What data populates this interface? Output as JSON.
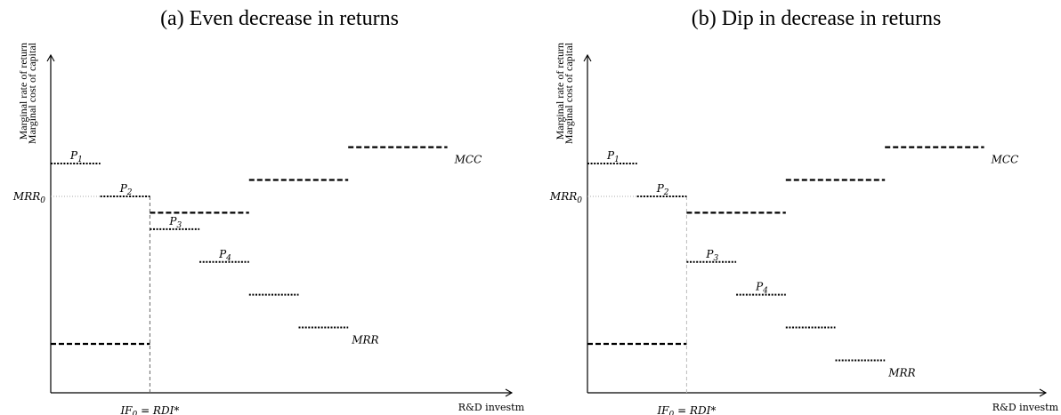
{
  "panels": [
    {
      "id": "a",
      "title": "(a) Even decrease in returns",
      "y_label_1": "Marginal rate of return",
      "y_label_2": "Marginal cost of capital",
      "x_label": "R&D investm",
      "mrr0_label": "MRR",
      "mrr0_sub": "0",
      "if_label": "IF",
      "if_sub": "0",
      "if_rest": " = RDI*",
      "mcc_label": "MCC",
      "mrr_label": "MRR",
      "projects": [
        {
          "name": "P",
          "sub": "1"
        },
        {
          "name": "P",
          "sub": "2"
        },
        {
          "name": "P",
          "sub": "3"
        },
        {
          "name": "P",
          "sub": "4"
        }
      ],
      "mrr_steps": [
        {
          "start": 0,
          "end": 1,
          "level": 6.9
        },
        {
          "start": 1,
          "end": 2,
          "level": 5.9
        },
        {
          "start": 2,
          "end": 3,
          "level": 4.9
        },
        {
          "start": 3,
          "end": 4,
          "level": 3.9
        },
        {
          "start": 4,
          "end": 5,
          "level": 2.9
        },
        {
          "start": 5,
          "end": 6,
          "level": 1.9
        }
      ],
      "mcc_steps": [
        {
          "start": 0,
          "end": 2,
          "level": 1.4
        },
        {
          "start": 2,
          "end": 4,
          "level": 5.4
        },
        {
          "start": 4,
          "end": 6,
          "level": 6.4
        },
        {
          "start": 6,
          "end": 8,
          "level": 7.4
        }
      ],
      "mrr0_level": 5.9,
      "if_x": 2
    },
    {
      "id": "b",
      "title": "(b) Dip in decrease in returns",
      "y_label_1": "Marginal rate of return",
      "y_label_2": "Marginal cost of capital",
      "x_label": "R&D investm",
      "mrr0_label": "MRR",
      "mrr0_sub": "0",
      "if_label": "IF",
      "if_sub": "0",
      "if_rest": " = RDI*",
      "mcc_label": "MCC",
      "mrr_label": "MRR",
      "projects": [
        {
          "name": "P",
          "sub": "1"
        },
        {
          "name": "P",
          "sub": "2"
        },
        {
          "name": "P",
          "sub": "3"
        },
        {
          "name": "P",
          "sub": "4"
        }
      ],
      "mrr_steps": [
        {
          "start": 0,
          "end": 1,
          "level": 6.9
        },
        {
          "start": 1,
          "end": 2,
          "level": 5.9
        },
        {
          "start": 2,
          "end": 3,
          "level": 3.9
        },
        {
          "start": 3,
          "end": 4,
          "level": 2.9
        },
        {
          "start": 4,
          "end": 5,
          "level": 1.9
        },
        {
          "start": 5,
          "end": 6,
          "level": 0.9
        }
      ],
      "mcc_steps": [
        {
          "start": 0,
          "end": 2,
          "level": 1.4
        },
        {
          "start": 2,
          "end": 4,
          "level": 5.4
        },
        {
          "start": 4,
          "end": 6,
          "level": 6.4
        },
        {
          "start": 6,
          "end": 8,
          "level": 7.4
        }
      ],
      "mrr0_level": 5.9,
      "if_x": 2
    }
  ]
}
